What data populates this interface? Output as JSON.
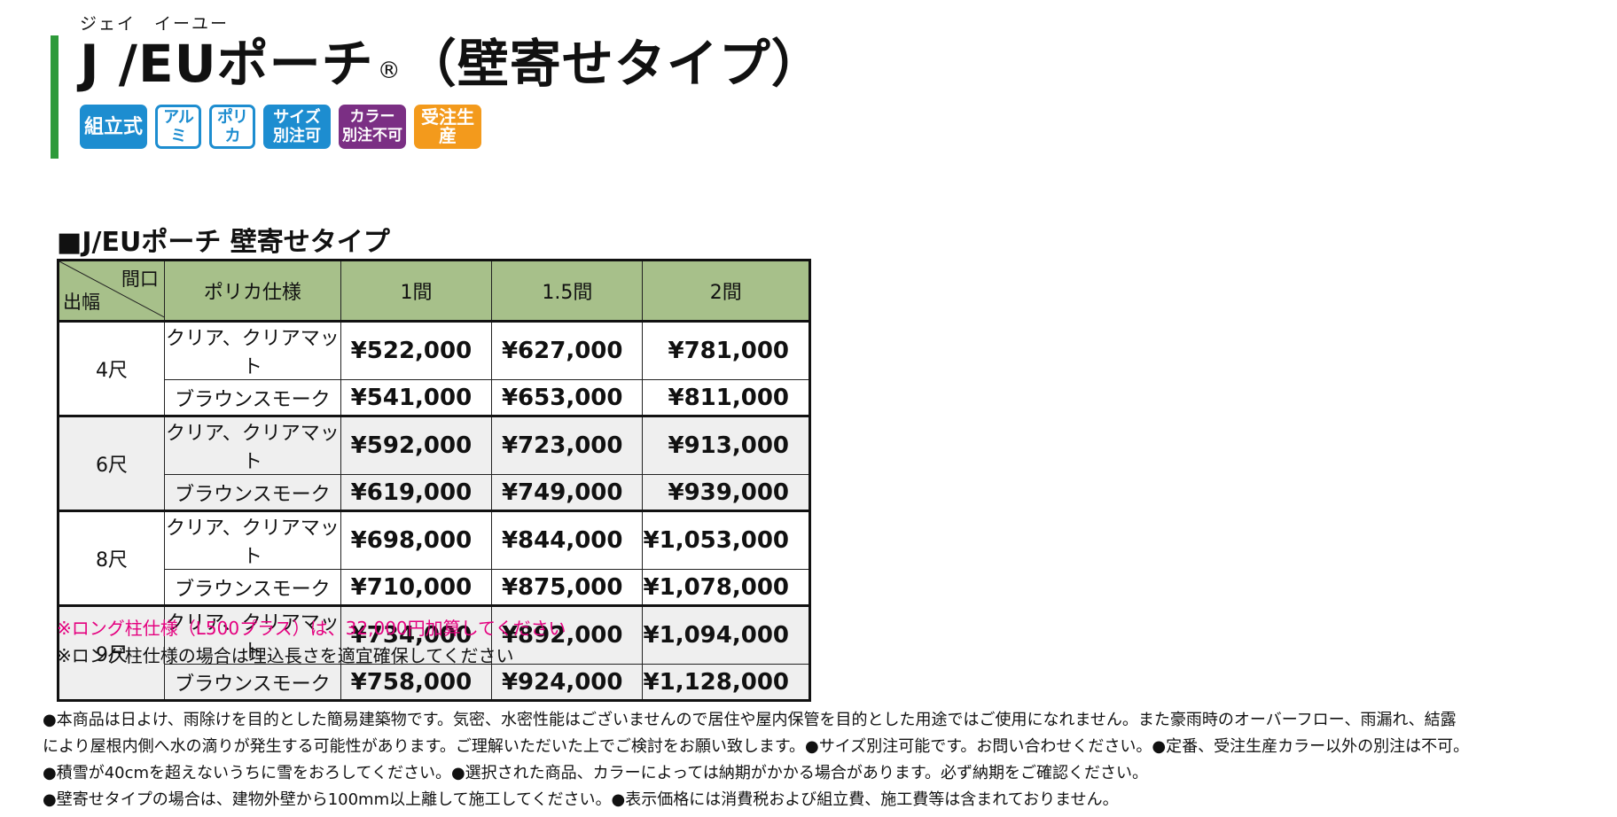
{
  "header": {
    "ruby": "ジェイ　イーユー",
    "title_main": "J /EUポーチ",
    "registered": "®",
    "title_sub": "（壁寄せタイプ）"
  },
  "badges": [
    {
      "lines": [
        "組立式"
      ],
      "color": "#1d8dd0",
      "style": "solid"
    },
    {
      "lines": [
        "アルミ"
      ],
      "color": "#1d8dd0",
      "style": "outline"
    },
    {
      "lines": [
        "ポリカ"
      ],
      "color": "#1d8dd0",
      "style": "outline"
    },
    {
      "lines": [
        "サイズ",
        "別注可"
      ],
      "color": "#1d8dd0",
      "style": "solid"
    },
    {
      "lines": [
        "カラー",
        "別注不可"
      ],
      "color": "#7b2f84",
      "style": "solid"
    },
    {
      "lines": [
        "受注生産"
      ],
      "color": "#f39a1c",
      "style": "solid"
    }
  ],
  "section_title": "■J/EUポーチ  壁寄せタイプ",
  "table": {
    "corner_top": "間口",
    "corner_bottom": "出幅",
    "headers": [
      "ポリカ仕様",
      "1間",
      "1.5間",
      "2間"
    ],
    "groups": [
      {
        "depth": "4尺",
        "rows": [
          {
            "poly": "クリア、クリアマット",
            "prices": [
              "¥522,000",
              "¥627,000",
              "¥781,000"
            ]
          },
          {
            "poly": "ブラウンスモーク",
            "prices": [
              "¥541,000",
              "¥653,000",
              "¥811,000"
            ]
          }
        ]
      },
      {
        "depth": "6尺",
        "rows": [
          {
            "poly": "クリア、クリアマット",
            "prices": [
              "¥592,000",
              "¥723,000",
              "¥913,000"
            ]
          },
          {
            "poly": "ブラウンスモーク",
            "prices": [
              "¥619,000",
              "¥749,000",
              "¥939,000"
            ]
          }
        ]
      },
      {
        "depth": "8尺",
        "rows": [
          {
            "poly": "クリア、クリアマット",
            "prices": [
              "¥698,000",
              "¥844,000",
              "¥1,053,000"
            ]
          },
          {
            "poly": "ブラウンスモーク",
            "prices": [
              "¥710,000",
              "¥875,000",
              "¥1,078,000"
            ]
          }
        ]
      },
      {
        "depth": "9尺",
        "rows": [
          {
            "poly": "クリア、クリアマット",
            "prices": [
              "¥734,000",
              "¥892,000",
              "¥1,094,000"
            ]
          },
          {
            "poly": "ブラウンスモーク",
            "prices": [
              "¥758,000",
              "¥924,000",
              "¥1,128,000"
            ]
          }
        ]
      }
    ]
  },
  "notes": {
    "pink": "※ロング柱仕様（L500プラス）は、32,000円加算してください",
    "black": "※ロング柱仕様の場合は埋込長さを適宜確保してください"
  },
  "bottom_notes": [
    "●本商品は日よけ、雨除けを目的とした簡易建築物です。気密、水密性能はございませんので居住や屋内保管を目的とした用途ではご使用になれません。また豪雨時のオーバーフロー、雨漏れ、結露",
    "により屋根内側へ水の滴りが発生する可能性があります。ご理解いただいた上でご検討をお願い致します。●サイズ別注可能です。お問い合わせください。●定番、受注生産カラー以外の別注は不可。",
    "●積雪が40cmを超えないうちに雪をおろしてください。●選択された商品、カラーによっては納期がかかる場合があります。必ず納期をご確認ください。",
    "●壁寄せタイプの場合は、建物外壁から100mm以上離して施工してください。●表示価格には消費税および組立費、施工費等は含まれておりません。"
  ],
  "colors": {
    "accent_green": "#2e9a3a",
    "header_fill": "#a7c08a",
    "note_pink": "#e4007f",
    "row_shade": "#efefef"
  }
}
